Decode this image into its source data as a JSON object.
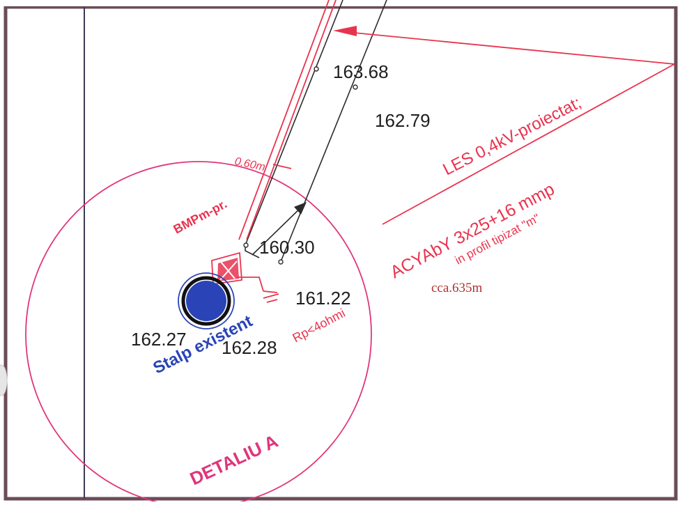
{
  "labels": {
    "elevations": [
      "163.68",
      "162.79",
      "160.30",
      "161.22",
      "162.27",
      "162.28"
    ],
    "offset": "0.60m",
    "bmp": "BMPm-pr.",
    "rp": "Rp<4ohmi",
    "stalp": "Stalp existent",
    "les": "LES 0,4kV-proiectat;",
    "cable": "ACYAbY 3x25+16 mmp",
    "profile": "in profil tipizat \"m\"",
    "length": "cca.635m",
    "detail": "DETALIU A"
  },
  "colors": {
    "red": "#e8334f",
    "magenta": "#e0357a",
    "blue": "#2a44b8",
    "dark": "#2b2b2b",
    "frame": "#6b4c58",
    "length_text": "#b0302f"
  }
}
